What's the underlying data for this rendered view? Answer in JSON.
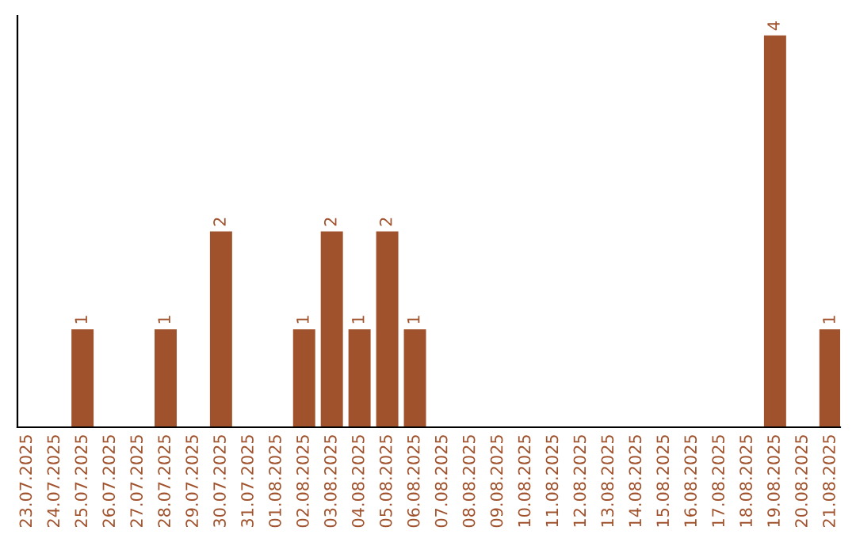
{
  "chart_data": {
    "type": "bar",
    "categories": [
      "23.07.2025",
      "24.07.2025",
      "25.07.2025",
      "26.07.2025",
      "27.07.2025",
      "28.07.2025",
      "29.07.2025",
      "30.07.2025",
      "31.07.2025",
      "01.08.2025",
      "02.08.2025",
      "03.08.2025",
      "04.08.2025",
      "05.08.2025",
      "06.08.2025",
      "07.08.2025",
      "08.08.2025",
      "09.08.2025",
      "10.08.2025",
      "11.08.2025",
      "12.08.2025",
      "13.08.2025",
      "14.08.2025",
      "15.08.2025",
      "16.08.2025",
      "17.08.2025",
      "18.08.2025",
      "19.08.2025",
      "20.08.2025",
      "21.08.2025"
    ],
    "values": [
      0,
      0,
      1,
      0,
      0,
      1,
      0,
      2,
      0,
      0,
      1,
      2,
      1,
      2,
      1,
      0,
      0,
      0,
      0,
      0,
      0,
      0,
      0,
      0,
      0,
      0,
      0,
      4,
      0,
      1
    ],
    "value_labels": [
      null,
      null,
      "1",
      null,
      null,
      "1",
      null,
      "2",
      null,
      null,
      "1",
      "2",
      "1",
      "2",
      "1",
      null,
      null,
      null,
      null,
      null,
      null,
      null,
      null,
      null,
      null,
      null,
      null,
      "4",
      null,
      "1"
    ],
    "color": "#a0522d",
    "tick_labels": "x",
    "grid": false,
    "legend": false
  }
}
